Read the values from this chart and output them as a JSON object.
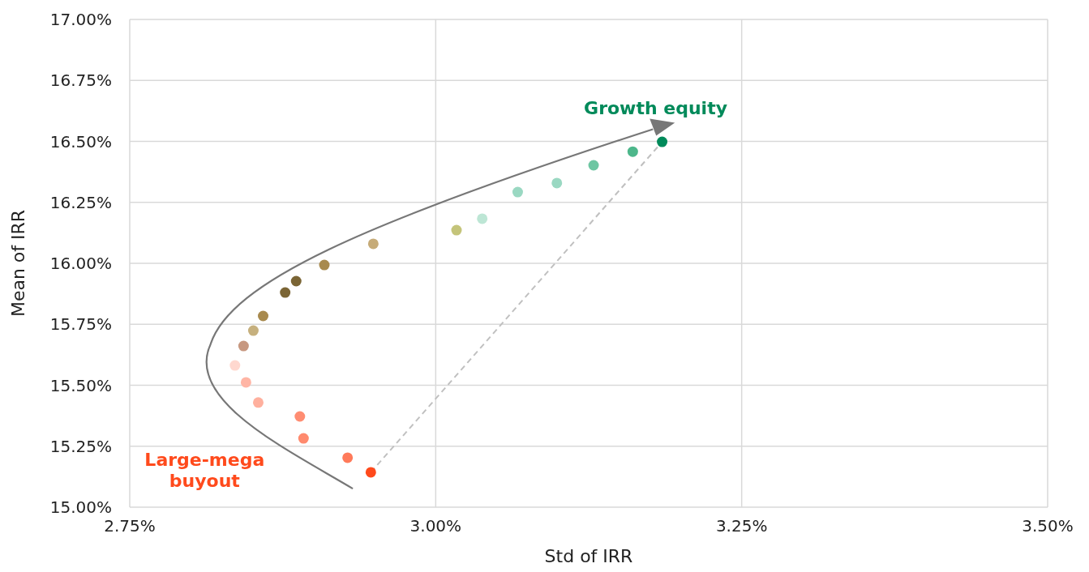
{
  "chart_data": {
    "type": "scatter",
    "xlabel": "Std of IRR",
    "ylabel": "Mean of IRR",
    "grid": true,
    "xlim": [
      2.75,
      3.5
    ],
    "ylim": [
      15,
      17
    ],
    "xticks": [
      {
        "value": 2.75,
        "label": "2.75%"
      },
      {
        "value": 3,
        "label": "3.00%"
      },
      {
        "value": 3.25,
        "label": "3.25%"
      },
      {
        "value": 3.5,
        "label": "3.50%"
      }
    ],
    "yticks": [
      {
        "value": 15,
        "label": "15.00%"
      },
      {
        "value": 15.25,
        "label": "15.25%"
      },
      {
        "value": 15.5,
        "label": "15.50%"
      },
      {
        "value": 15.75,
        "label": "15.75%"
      },
      {
        "value": 16,
        "label": "16.00%"
      },
      {
        "value": 16.25,
        "label": "16.25%"
      },
      {
        "value": 16.5,
        "label": "16.50%"
      },
      {
        "value": 16.75,
        "label": "16.75%"
      },
      {
        "value": 17,
        "label": "17.00%"
      }
    ],
    "series": [
      {
        "type": "line",
        "x": [
          2.947,
          3.185
        ],
        "values": [
          15.143,
          16.498
        ],
        "color": "#c0c0c0",
        "line_style": "dashed",
        "marker": "none"
      },
      {
        "marker": "circle",
        "x": [
          2.947,
          2.928,
          2.892,
          2.889,
          2.855,
          2.845,
          2.836,
          2.843,
          2.851,
          2.859,
          2.877,
          2.886,
          2.909,
          2.949,
          3.017,
          3.038,
          3.067,
          3.099,
          3.129,
          3.161,
          3.185
        ],
        "values": [
          15.143,
          15.203,
          15.282,
          15.372,
          15.429,
          15.512,
          15.581,
          15.661,
          15.724,
          15.784,
          15.88,
          15.927,
          15.993,
          16.08,
          16.136,
          16.183,
          16.292,
          16.329,
          16.402,
          16.458,
          16.498
        ],
        "colors": [
          "#ff4a1c",
          "#ff7a5a",
          "#ff8a6e",
          "#ff8d72",
          "#ffb09e",
          "#ffb5a5",
          "#ffd8cf",
          "#c79880",
          "#c6b07e",
          "#a88a4e",
          "#7b6535",
          "#7b6535",
          "#a88a4e",
          "#c6ab78",
          "#c4c47a",
          "#bde6d5",
          "#9ad8c2",
          "#9ad8c2",
          "#6dc6a2",
          "#4db78b",
          "#008a5a"
        ]
      }
    ],
    "annotations": [
      "Growth equity",
      "Large-mega buyout"
    ]
  }
}
